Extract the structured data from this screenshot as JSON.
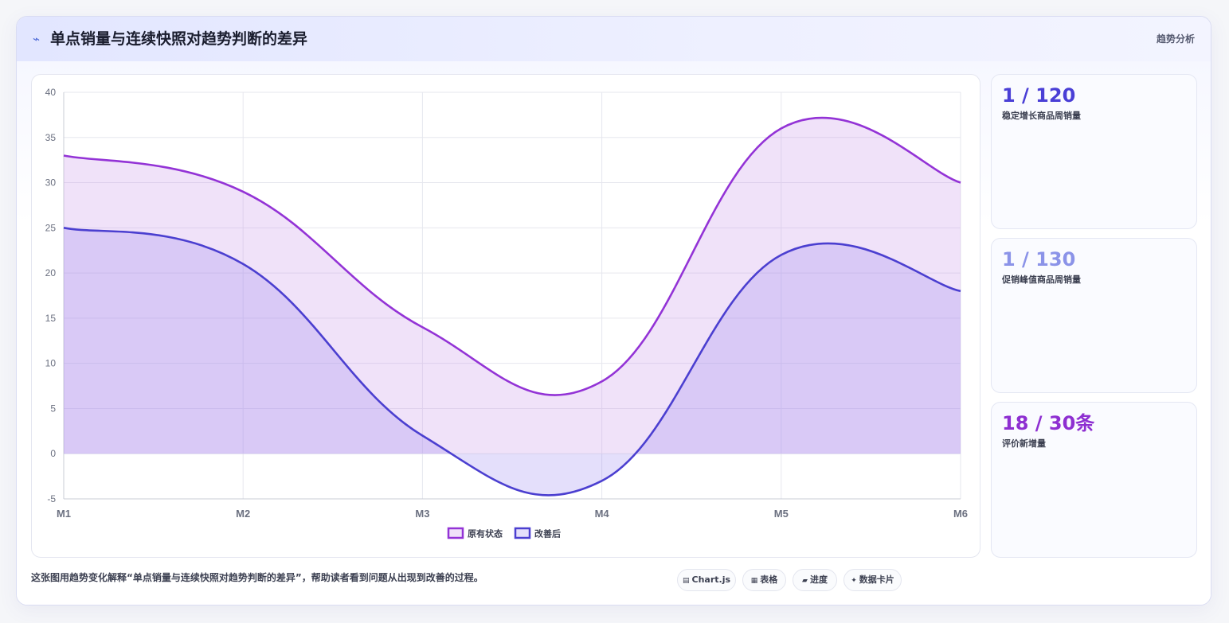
{
  "header": {
    "icon": "trend-wave-icon",
    "title": "单点销量与连续快照对趋势判断的差异",
    "tag": "趋势分析"
  },
  "stats": [
    {
      "value": "1 / 120",
      "label": "稳定增长商品周销量",
      "color": "#4a3fd6"
    },
    {
      "value": "1 / 130",
      "label": "促销峰值商品周销量",
      "color": "#8b93e8"
    },
    {
      "value": "18 / 30条",
      "label": "评价新增量",
      "color": "#8e2fd1"
    }
  ],
  "caption": "这张图用趋势变化解释“单点销量与连续快照对趋势判断的差异”，帮助读者看到问题从出现到改善的过程。",
  "chips": [
    {
      "glyph": "▤",
      "label": "Chart.js"
    },
    {
      "glyph": "▦",
      "label": "表格"
    },
    {
      "glyph": "▰",
      "label": "进度"
    },
    {
      "glyph": "✦",
      "label": "数据卡片"
    }
  ],
  "chart_data": {
    "type": "area",
    "categories": [
      "M1",
      "M2",
      "M3",
      "M4",
      "M5",
      "M6"
    ],
    "series": [
      {
        "name": "原有状态",
        "values": [
          33,
          29,
          14,
          8,
          36,
          30
        ],
        "color": "#9333d6",
        "fill": "rgba(200,150,235,0.28)"
      },
      {
        "name": "改善后",
        "values": [
          25,
          21,
          2,
          -3,
          22,
          18
        ],
        "color": "#4b3fd0",
        "fill": "rgba(150,130,240,0.26)"
      }
    ],
    "ylim": [
      -5,
      40
    ],
    "yticks": [
      40,
      35,
      30,
      25,
      20,
      15,
      10,
      5,
      0,
      -5
    ],
    "legend_position": "bottom",
    "grid": true
  }
}
